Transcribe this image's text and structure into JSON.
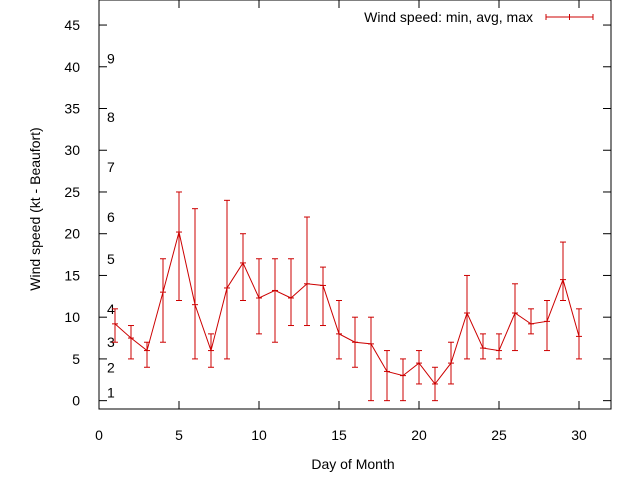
{
  "chart_data": {
    "type": "line",
    "xlabel": "Day of Month",
    "ylabel": "Wind speed (kt - Beaufort)",
    "xlim": [
      0,
      32
    ],
    "ylim": [
      -1,
      48
    ],
    "xticks": [
      0,
      5,
      10,
      15,
      20,
      25,
      30
    ],
    "yticks": [
      0,
      5,
      10,
      15,
      20,
      25,
      30,
      35,
      40,
      45
    ],
    "grid": false,
    "legend_position": "top-right",
    "beaufort_labels": [
      {
        "label": "1",
        "y": 1
      },
      {
        "label": "2",
        "y": 4
      },
      {
        "label": "3",
        "y": 7
      },
      {
        "label": "4",
        "y": 11
      },
      {
        "label": "5",
        "y": 17
      },
      {
        "label": "6",
        "y": 22
      },
      {
        "label": "7",
        "y": 28
      },
      {
        "label": "8",
        "y": 34
      },
      {
        "label": "9",
        "y": 41
      }
    ],
    "series": [
      {
        "name": "Wind speed: min, avg, max",
        "color": "#cc0000",
        "x": [
          1,
          2,
          3,
          4,
          5,
          6,
          7,
          8,
          9,
          10,
          11,
          12,
          13,
          14,
          15,
          16,
          17,
          18,
          19,
          20,
          21,
          22,
          23,
          24,
          25,
          26,
          27,
          28,
          29,
          30
        ],
        "avg": [
          9.2,
          7.5,
          6,
          13,
          20.2,
          11.5,
          6,
          13.5,
          16.5,
          12.3,
          13.2,
          12.3,
          14,
          13.8,
          8,
          7,
          6.8,
          3.5,
          3,
          4.5,
          2,
          4.5,
          10.5,
          6.3,
          6,
          10.5,
          9.2,
          9.5,
          14.5,
          7.7
        ],
        "min": [
          7,
          5,
          4,
          7,
          12,
          5,
          4,
          5,
          12,
          8,
          7,
          9,
          9,
          9,
          5,
          4,
          0,
          0,
          0,
          2,
          0,
          2,
          5,
          5,
          5,
          6,
          8,
          6,
          12,
          5
        ],
        "max": [
          11,
          9,
          7,
          17,
          25,
          23,
          8,
          24,
          20,
          17,
          17,
          17,
          22,
          16,
          12,
          10,
          10,
          6,
          5,
          6,
          4,
          7,
          15,
          8,
          8,
          14,
          11,
          12,
          19,
          11
        ]
      }
    ]
  }
}
